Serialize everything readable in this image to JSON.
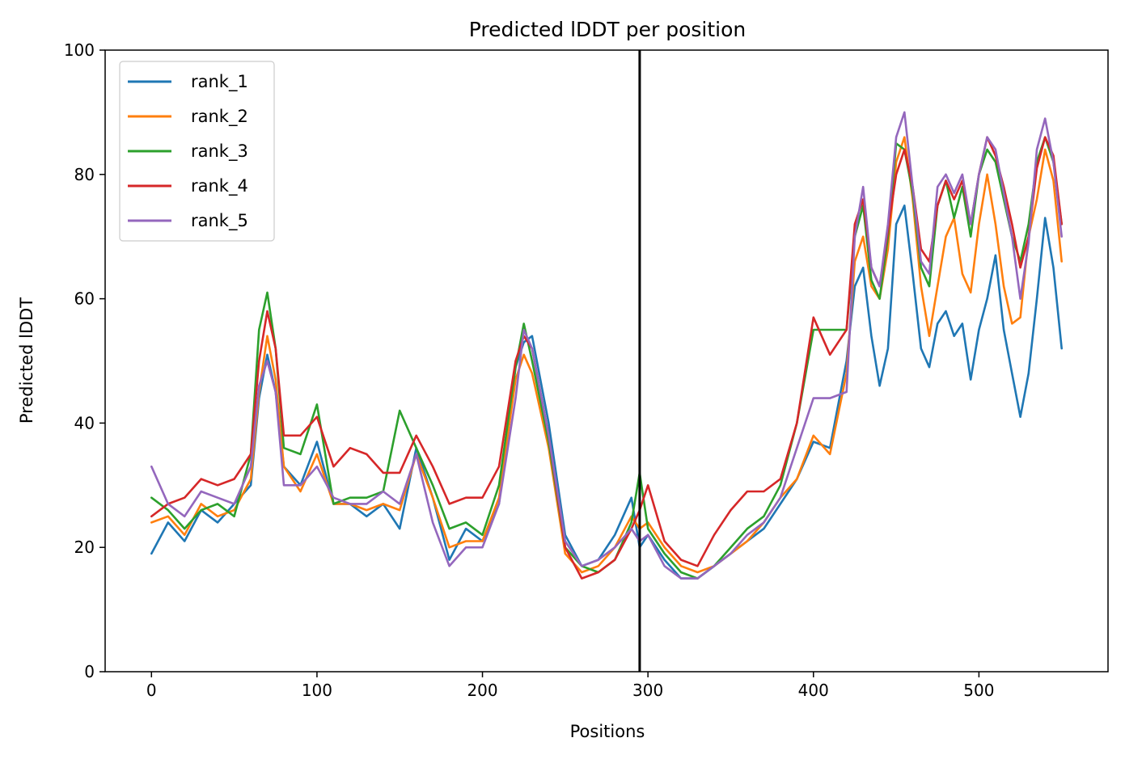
{
  "chart_data": {
    "type": "line",
    "title": "Predicted lDDT per position",
    "xlabel": "Positions",
    "ylabel": "Predicted lDDT",
    "xlim": [
      -28,
      578
    ],
    "ylim": [
      0,
      100
    ],
    "xticks": [
      "0",
      "100",
      "200",
      "300",
      "400",
      "500"
    ],
    "yticks": [
      "0",
      "20",
      "40",
      "60",
      "80",
      "100"
    ],
    "grid": false,
    "legend_position": "upper-left",
    "vline_x": 295,
    "series": [
      {
        "name": "rank_1",
        "color": "#1f77b4",
        "x": [
          0,
          10,
          20,
          30,
          40,
          50,
          60,
          65,
          70,
          75,
          80,
          90,
          100,
          110,
          120,
          130,
          140,
          150,
          160,
          170,
          180,
          190,
          200,
          210,
          220,
          225,
          230,
          240,
          250,
          260,
          270,
          280,
          290,
          295,
          300,
          310,
          320,
          330,
          340,
          350,
          360,
          370,
          380,
          390,
          400,
          410,
          420,
          425,
          430,
          435,
          440,
          445,
          450,
          455,
          460,
          465,
          470,
          475,
          480,
          485,
          490,
          495,
          500,
          505,
          510,
          515,
          520,
          525,
          530,
          535,
          540,
          545,
          550
        ],
        "y": [
          19,
          24,
          21,
          26,
          24,
          27,
          30,
          44,
          51,
          45,
          33,
          30,
          37,
          27,
          27,
          25,
          27,
          23,
          36,
          28,
          18,
          23,
          21,
          27,
          49,
          53,
          54,
          40,
          22,
          17,
          18,
          22,
          28,
          20,
          22,
          18,
          15,
          15,
          17,
          19,
          21,
          23,
          27,
          31,
          37,
          36,
          50,
          62,
          65,
          54,
          46,
          52,
          72,
          75,
          64,
          52,
          49,
          56,
          58,
          54,
          56,
          47,
          55,
          60,
          67,
          55,
          48,
          41,
          48,
          60,
          73,
          65,
          52
        ]
      },
      {
        "name": "rank_2",
        "color": "#ff7f0e",
        "x": [
          0,
          10,
          20,
          30,
          40,
          50,
          60,
          65,
          70,
          75,
          80,
          90,
          100,
          110,
          120,
          130,
          140,
          150,
          160,
          170,
          180,
          190,
          200,
          210,
          220,
          225,
          230,
          240,
          250,
          260,
          270,
          280,
          290,
          295,
          300,
          310,
          320,
          330,
          340,
          350,
          360,
          370,
          380,
          390,
          400,
          410,
          420,
          425,
          430,
          435,
          440,
          445,
          450,
          455,
          460,
          465,
          470,
          475,
          480,
          485,
          490,
          495,
          500,
          505,
          510,
          515,
          520,
          525,
          530,
          535,
          540,
          545,
          550
        ],
        "y": [
          24,
          25,
          22,
          27,
          25,
          26,
          31,
          45,
          54,
          47,
          33,
          29,
          35,
          27,
          27,
          26,
          27,
          26,
          35,
          28,
          20,
          21,
          21,
          28,
          47,
          51,
          48,
          36,
          19,
          16,
          17,
          20,
          25,
          23,
          24,
          20,
          17,
          16,
          17,
          19,
          21,
          24,
          28,
          31,
          38,
          35,
          48,
          66,
          70,
          62,
          60,
          68,
          82,
          86,
          76,
          62,
          54,
          62,
          70,
          73,
          64,
          61,
          72,
          80,
          72,
          62,
          56,
          57,
          70,
          76,
          84,
          79,
          66
        ]
      },
      {
        "name": "rank_3",
        "color": "#2ca02c",
        "x": [
          0,
          10,
          20,
          30,
          40,
          50,
          60,
          65,
          70,
          75,
          80,
          90,
          100,
          110,
          120,
          130,
          140,
          150,
          160,
          170,
          180,
          190,
          200,
          210,
          220,
          225,
          230,
          240,
          250,
          260,
          270,
          280,
          290,
          295,
          300,
          310,
          320,
          330,
          340,
          350,
          360,
          370,
          380,
          390,
          400,
          410,
          420,
          425,
          430,
          435,
          440,
          445,
          450,
          455,
          460,
          465,
          470,
          475,
          480,
          485,
          490,
          495,
          500,
          505,
          510,
          515,
          520,
          525,
          530,
          535,
          540,
          545,
          550
        ],
        "y": [
          28,
          26,
          23,
          26,
          27,
          25,
          35,
          55,
          61,
          52,
          36,
          35,
          43,
          27,
          28,
          28,
          29,
          42,
          36,
          30,
          23,
          24,
          22,
          30,
          49,
          56,
          50,
          37,
          20,
          17,
          16,
          18,
          24,
          32,
          23,
          19,
          16,
          15,
          17,
          20,
          23,
          25,
          30,
          40,
          55,
          55,
          55,
          70,
          75,
          63,
          60,
          70,
          85,
          84,
          77,
          65,
          62,
          75,
          79,
          73,
          78,
          70,
          80,
          84,
          82,
          76,
          70,
          66,
          72,
          82,
          86,
          82,
          72
        ]
      },
      {
        "name": "rank_4",
        "color": "#d62728",
        "x": [
          0,
          10,
          20,
          30,
          40,
          50,
          60,
          65,
          70,
          75,
          80,
          90,
          100,
          110,
          120,
          130,
          140,
          150,
          160,
          170,
          180,
          190,
          200,
          210,
          220,
          225,
          230,
          240,
          250,
          260,
          270,
          280,
          290,
          295,
          300,
          310,
          320,
          330,
          340,
          350,
          360,
          370,
          380,
          390,
          400,
          410,
          420,
          425,
          430,
          435,
          440,
          445,
          450,
          455,
          460,
          465,
          470,
          475,
          480,
          485,
          490,
          495,
          500,
          505,
          510,
          515,
          520,
          525,
          530,
          535,
          540,
          545,
          550
        ],
        "y": [
          25,
          27,
          28,
          31,
          30,
          31,
          35,
          50,
          58,
          52,
          38,
          38,
          41,
          33,
          36,
          35,
          32,
          32,
          38,
          33,
          27,
          28,
          28,
          33,
          50,
          54,
          52,
          38,
          20,
          15,
          16,
          18,
          23,
          26,
          30,
          21,
          18,
          17,
          22,
          26,
          29,
          29,
          31,
          40,
          57,
          51,
          55,
          72,
          76,
          65,
          62,
          71,
          80,
          84,
          78,
          68,
          66,
          75,
          79,
          76,
          79,
          72,
          80,
          86,
          83,
          78,
          72,
          65,
          70,
          81,
          86,
          83,
          72
        ]
      },
      {
        "name": "rank_5",
        "color": "#9467bd",
        "x": [
          0,
          10,
          20,
          30,
          40,
          50,
          60,
          65,
          70,
          75,
          80,
          90,
          100,
          110,
          120,
          130,
          140,
          150,
          160,
          170,
          180,
          190,
          200,
          210,
          220,
          225,
          230,
          240,
          250,
          260,
          270,
          280,
          290,
          295,
          300,
          310,
          320,
          330,
          340,
          350,
          360,
          370,
          380,
          390,
          400,
          410,
          420,
          425,
          430,
          435,
          440,
          445,
          450,
          455,
          460,
          465,
          470,
          475,
          480,
          485,
          490,
          495,
          500,
          505,
          510,
          515,
          520,
          525,
          530,
          535,
          540,
          545,
          550
        ],
        "y": [
          33,
          27,
          25,
          29,
          28,
          27,
          33,
          46,
          50,
          45,
          30,
          30,
          33,
          28,
          27,
          27,
          29,
          27,
          35,
          24,
          17,
          20,
          20,
          27,
          44,
          55,
          52,
          38,
          21,
          17,
          18,
          20,
          23,
          21,
          22,
          17,
          15,
          15,
          17,
          19,
          22,
          24,
          28,
          36,
          44,
          44,
          45,
          70,
          78,
          65,
          62,
          72,
          86,
          90,
          78,
          66,
          64,
          78,
          80,
          77,
          80,
          72,
          80,
          86,
          84,
          77,
          70,
          60,
          69,
          84,
          89,
          82,
          70
        ]
      }
    ]
  }
}
